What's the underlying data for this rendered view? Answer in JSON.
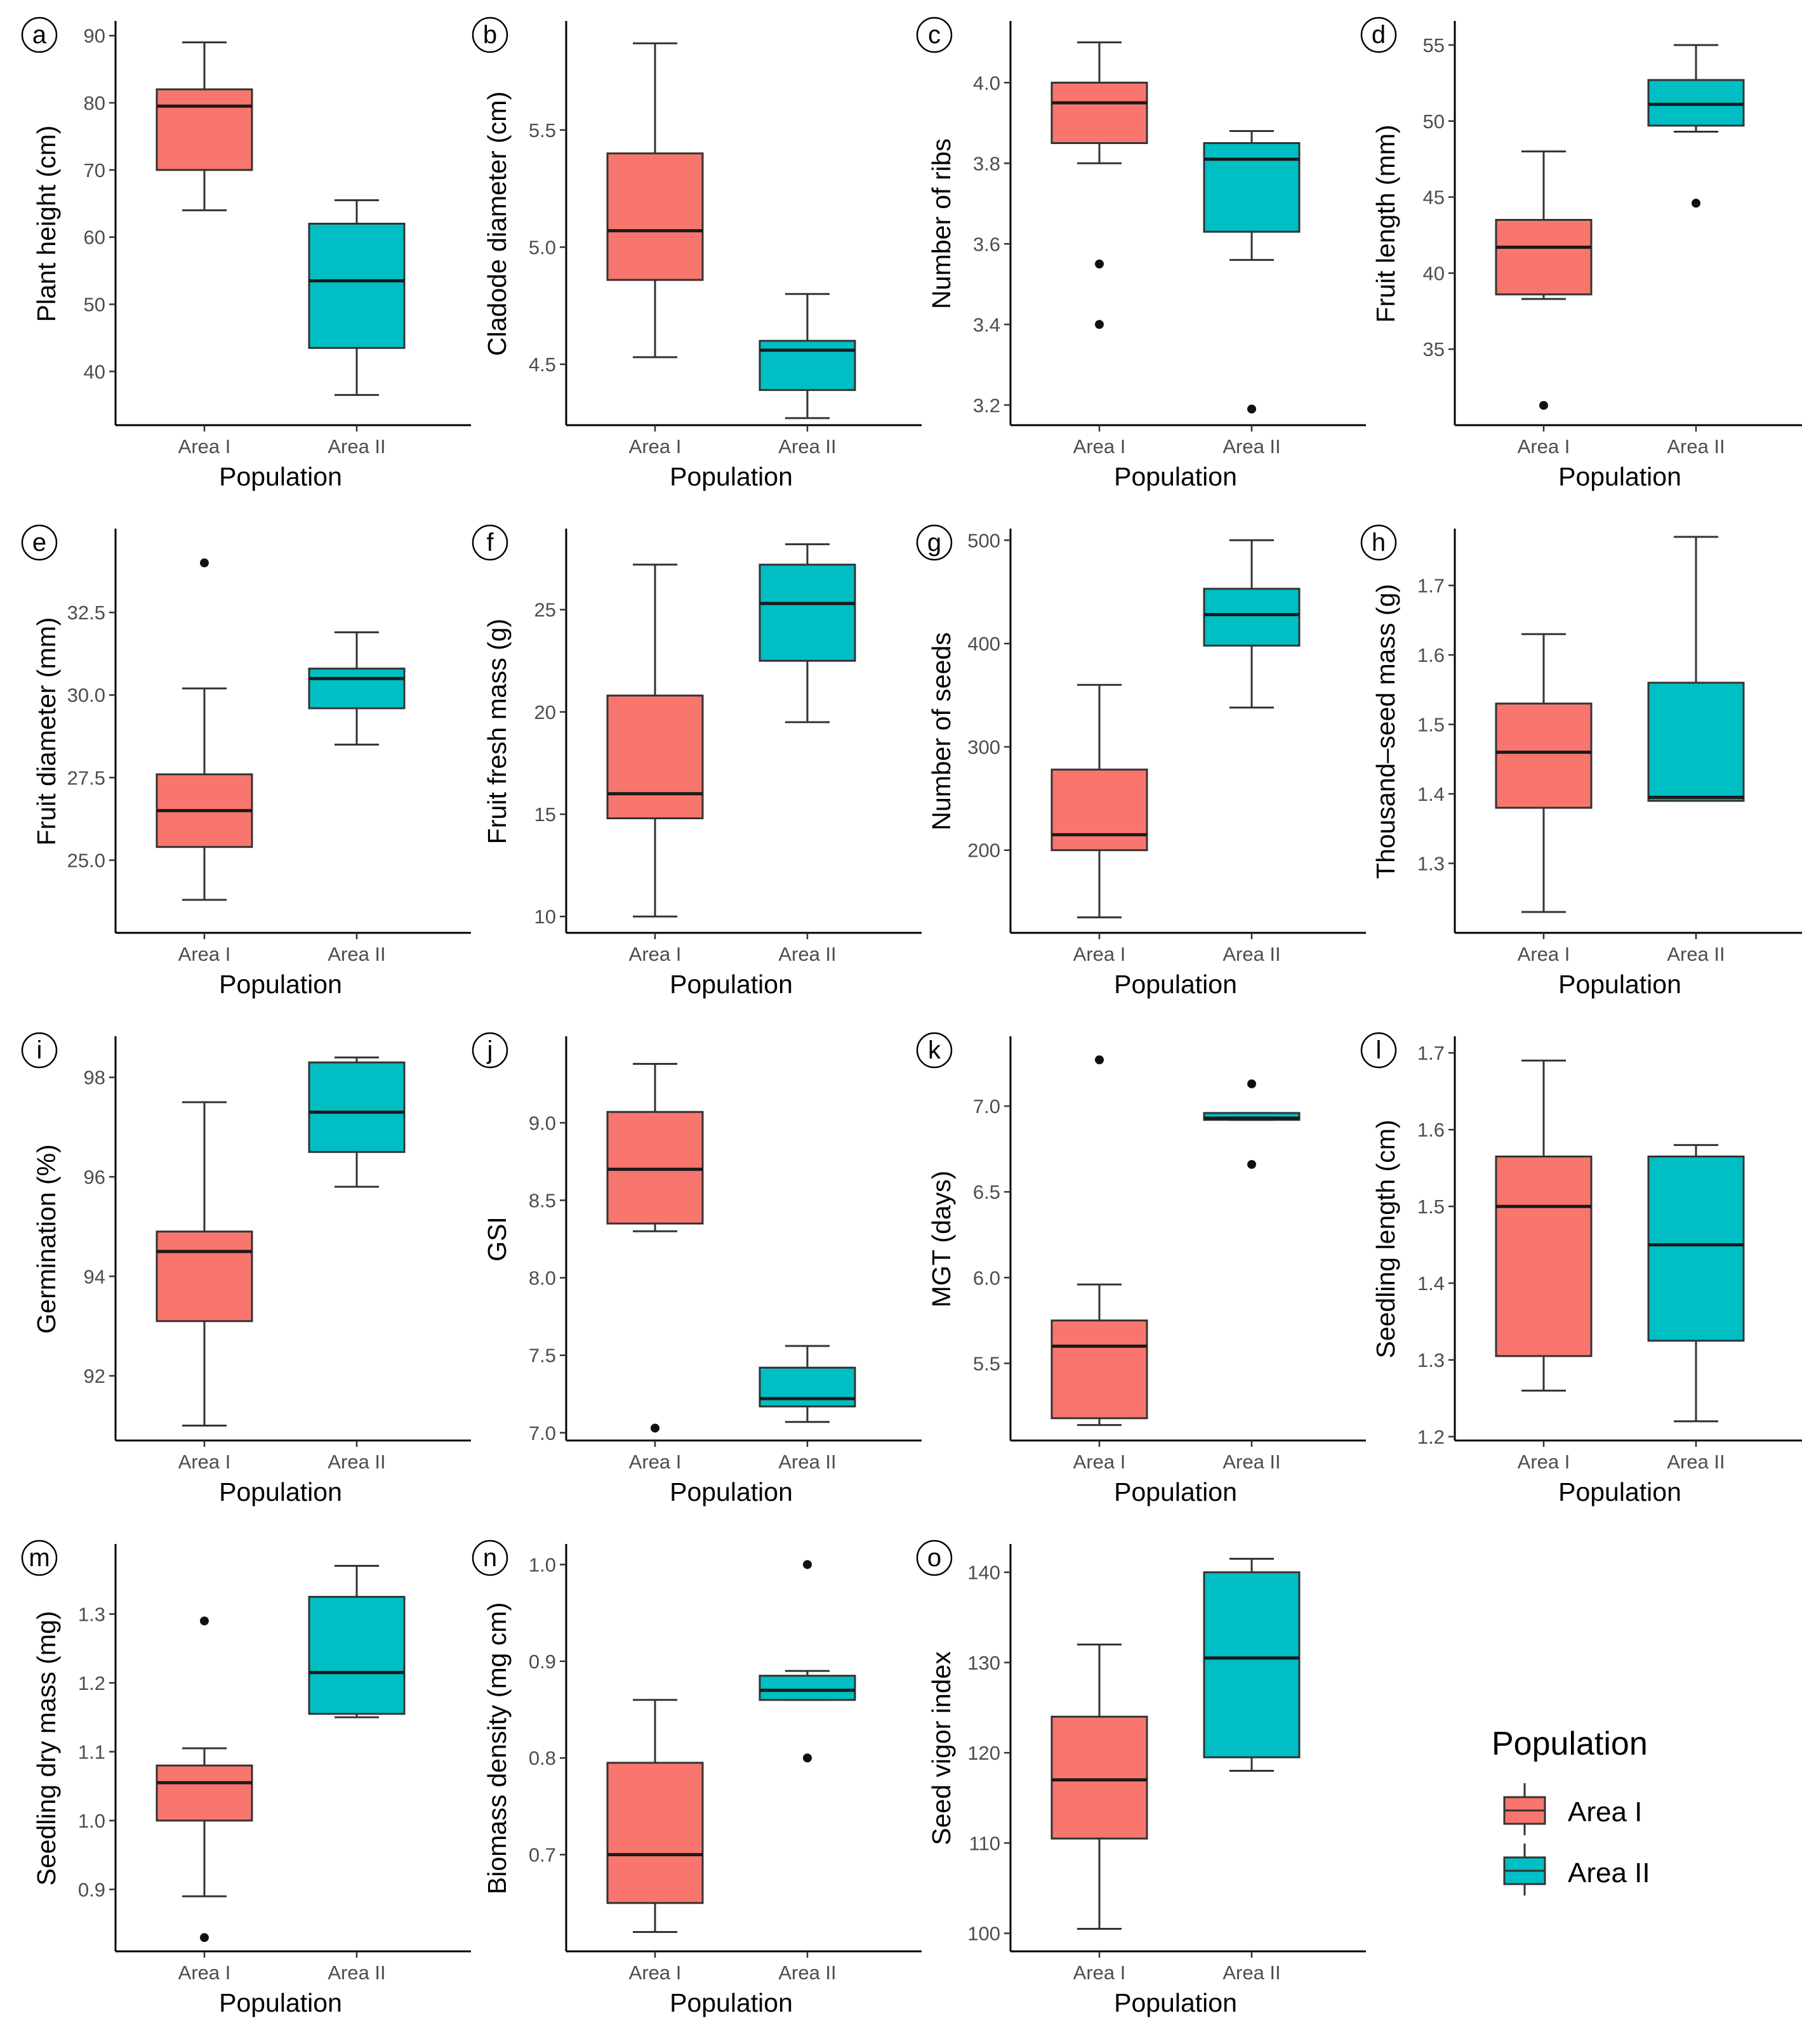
{
  "colors": {
    "area_i": "#F8766D",
    "area_ii": "#00BFC4"
  },
  "legend": {
    "title": "Population",
    "items": [
      {
        "label": "Area I",
        "color": "#F8766D"
      },
      {
        "label": "Area II",
        "color": "#00BFC4"
      }
    ]
  },
  "chart_data": [
    {
      "type": "boxplot",
      "panel": "a",
      "ylabel": "Plant height (cm)",
      "xlabel": "Population",
      "categories": [
        "Area I",
        "Area II"
      ],
      "ylim": [
        32,
        92
      ],
      "ticks": [
        40,
        50,
        60,
        70,
        80,
        90
      ],
      "boxes": [
        {
          "min": 64,
          "q1": 70,
          "median": 79.5,
          "q3": 82,
          "max": 89,
          "outliers": []
        },
        {
          "min": 36.5,
          "q1": 43.5,
          "median": 53.5,
          "q3": 62,
          "max": 65.5,
          "outliers": []
        }
      ]
    },
    {
      "type": "boxplot",
      "panel": "b",
      "ylabel": "Cladode diameter (cm)",
      "xlabel": "Population",
      "categories": [
        "Area I",
        "Area II"
      ],
      "ylim": [
        4.24,
        5.96
      ],
      "ticks": [
        "4.5",
        "5.0",
        "5.5"
      ],
      "boxes": [
        {
          "min": 4.53,
          "q1": 4.86,
          "median": 5.07,
          "q3": 5.4,
          "max": 5.87,
          "outliers": []
        },
        {
          "min": 4.27,
          "q1": 4.39,
          "median": 4.56,
          "q3": 4.6,
          "max": 4.8,
          "outliers": []
        }
      ]
    },
    {
      "type": "boxplot",
      "panel": "c",
      "ylabel": "Number of ribs",
      "xlabel": "Population",
      "categories": [
        "Area I",
        "Area II"
      ],
      "ylim": [
        3.15,
        4.15
      ],
      "ticks": [
        "3.2",
        "3.4",
        "3.6",
        "3.8",
        "4.0"
      ],
      "boxes": [
        {
          "min": 3.8,
          "q1": 3.85,
          "median": 3.95,
          "q3": 4.0,
          "max": 4.1,
          "outliers": [
            3.55,
            3.4
          ]
        },
        {
          "min": 3.56,
          "q1": 3.63,
          "median": 3.81,
          "q3": 3.85,
          "max": 3.88,
          "outliers": [
            3.19
          ]
        }
      ]
    },
    {
      "type": "boxplot",
      "panel": "d",
      "ylabel": "Fruit length (mm)",
      "xlabel": "Population",
      "categories": [
        "Area I",
        "Area II"
      ],
      "ylim": [
        30,
        56.5
      ],
      "ticks": [
        35,
        40,
        45,
        50,
        55
      ],
      "boxes": [
        {
          "min": 38.3,
          "q1": 38.6,
          "median": 41.7,
          "q3": 43.5,
          "max": 48,
          "outliers": [
            31.3
          ]
        },
        {
          "min": 49.3,
          "q1": 49.7,
          "median": 51.1,
          "q3": 52.7,
          "max": 55,
          "outliers": [
            44.6
          ]
        }
      ]
    },
    {
      "type": "boxplot",
      "panel": "e",
      "ylabel": "Fruit diameter (mm)",
      "xlabel": "Population",
      "categories": [
        "Area I",
        "Area II"
      ],
      "ylim": [
        22.8,
        35.0
      ],
      "ticks": [
        "25.0",
        "27.5",
        "30.0",
        "32.5"
      ],
      "boxes": [
        {
          "min": 23.8,
          "q1": 25.4,
          "median": 26.5,
          "q3": 27.6,
          "max": 30.2,
          "outliers": [
            34
          ]
        },
        {
          "min": 28.5,
          "q1": 29.6,
          "median": 30.5,
          "q3": 30.8,
          "max": 31.9,
          "outliers": []
        }
      ]
    },
    {
      "type": "boxplot",
      "panel": "f",
      "ylabel": "Fruit fresh mass (g)",
      "xlabel": "Population",
      "categories": [
        "Area I",
        "Area II"
      ],
      "ylim": [
        9.2,
        28.9
      ],
      "ticks": [
        10,
        15,
        20,
        25
      ],
      "boxes": [
        {
          "min": 10,
          "q1": 14.8,
          "median": 16,
          "q3": 20.8,
          "max": 27.2,
          "outliers": []
        },
        {
          "min": 19.5,
          "q1": 22.5,
          "median": 25.3,
          "q3": 27.2,
          "max": 28.2,
          "outliers": []
        }
      ]
    },
    {
      "type": "boxplot",
      "panel": "g",
      "ylabel": "Number of seeds",
      "xlabel": "Population",
      "categories": [
        "Area I",
        "Area II"
      ],
      "ylim": [
        120,
        510
      ],
      "ticks": [
        200,
        300,
        400,
        500
      ],
      "boxes": [
        {
          "min": 135,
          "q1": 200,
          "median": 215,
          "q3": 278,
          "max": 360,
          "outliers": []
        },
        {
          "min": 338,
          "q1": 398,
          "median": 428,
          "q3": 453,
          "max": 500,
          "outliers": []
        }
      ]
    },
    {
      "type": "boxplot",
      "panel": "h",
      "ylabel": "Thousand–seed mass (g)",
      "xlabel": "Population",
      "categories": [
        "Area I",
        "Area II"
      ],
      "ylim": [
        1.2,
        1.78
      ],
      "ticks": [
        "1.3",
        "1.4",
        "1.5",
        "1.6",
        "1.7"
      ],
      "boxes": [
        {
          "min": 1.23,
          "q1": 1.38,
          "median": 1.46,
          "q3": 1.53,
          "max": 1.63,
          "outliers": []
        },
        {
          "min": 1.39,
          "q1": 1.39,
          "median": 1.395,
          "q3": 1.56,
          "max": 1.77,
          "outliers": []
        }
      ]
    },
    {
      "type": "boxplot",
      "panel": "i",
      "ylabel": "Germination (%)",
      "xlabel": "Population",
      "categories": [
        "Area I",
        "Area II"
      ],
      "ylim": [
        90.7,
        98.8
      ],
      "ticks": [
        92,
        94,
        96,
        98
      ],
      "boxes": [
        {
          "min": 91,
          "q1": 93.1,
          "median": 94.5,
          "q3": 94.9,
          "max": 97.5,
          "outliers": []
        },
        {
          "min": 95.8,
          "q1": 96.5,
          "median": 97.3,
          "q3": 98.3,
          "max": 98.4,
          "outliers": []
        }
      ]
    },
    {
      "type": "boxplot",
      "panel": "j",
      "ylabel": "GSI",
      "xlabel": "Population",
      "categories": [
        "Area I",
        "Area II"
      ],
      "ylim": [
        6.95,
        9.55
      ],
      "ticks": [
        "7.0",
        "7.5",
        "8.0",
        "8.5",
        "9.0"
      ],
      "boxes": [
        {
          "min": 8.3,
          "q1": 8.35,
          "median": 8.7,
          "q3": 9.07,
          "max": 9.38,
          "outliers": [
            7.03
          ]
        },
        {
          "min": 7.07,
          "q1": 7.17,
          "median": 7.22,
          "q3": 7.42,
          "max": 7.56,
          "outliers": []
        }
      ]
    },
    {
      "type": "boxplot",
      "panel": "k",
      "ylabel": "MGT (days)",
      "xlabel": "Population",
      "categories": [
        "Area I",
        "Area II"
      ],
      "ylim": [
        5.05,
        7.4
      ],
      "ticks": [
        "5.5",
        "6.0",
        "6.5",
        "7.0"
      ],
      "boxes": [
        {
          "min": 5.14,
          "q1": 5.18,
          "median": 5.6,
          "q3": 5.75,
          "max": 5.96,
          "outliers": [
            7.27
          ]
        },
        {
          "min": 6.92,
          "q1": 6.92,
          "median": 6.93,
          "q3": 6.96,
          "max": 6.96,
          "outliers": [
            7.13,
            6.66
          ]
        }
      ]
    },
    {
      "type": "boxplot",
      "panel": "l",
      "ylabel": "Seedling length (cm)",
      "xlabel": "Population",
      "categories": [
        "Area I",
        "Area II"
      ],
      "ylim": [
        1.195,
        1.72
      ],
      "ticks": [
        "1.2",
        "1.3",
        "1.4",
        "1.5",
        "1.6",
        "1.7"
      ],
      "boxes": [
        {
          "min": 1.26,
          "q1": 1.305,
          "median": 1.5,
          "q3": 1.565,
          "max": 1.69,
          "outliers": []
        },
        {
          "min": 1.22,
          "q1": 1.325,
          "median": 1.45,
          "q3": 1.565,
          "max": 1.58,
          "outliers": []
        }
      ]
    },
    {
      "type": "boxplot",
      "panel": "m",
      "ylabel": "Seedling dry mass (mg)",
      "xlabel": "Population",
      "categories": [
        "Area I",
        "Area II"
      ],
      "ylim": [
        0.81,
        1.4
      ],
      "ticks": [
        "0.9",
        "1.0",
        "1.1",
        "1.2",
        "1.3"
      ],
      "boxes": [
        {
          "min": 0.89,
          "q1": 1.0,
          "median": 1.055,
          "q3": 1.08,
          "max": 1.105,
          "outliers": [
            1.29,
            0.83
          ]
        },
        {
          "min": 1.15,
          "q1": 1.155,
          "median": 1.215,
          "q3": 1.325,
          "max": 1.37,
          "outliers": []
        }
      ]
    },
    {
      "type": "boxplot",
      "panel": "n",
      "ylabel": "Biomass density (mg cm)",
      "xlabel": "Population",
      "categories": [
        "Area I",
        "Area II"
      ],
      "ylim": [
        0.6,
        1.02
      ],
      "ticks": [
        "0.7",
        "0.8",
        "0.9",
        "1.0"
      ],
      "boxes": [
        {
          "min": 0.62,
          "q1": 0.65,
          "median": 0.7,
          "q3": 0.795,
          "max": 0.86,
          "outliers": []
        },
        {
          "min": 0.86,
          "q1": 0.86,
          "median": 0.87,
          "q3": 0.885,
          "max": 0.89,
          "outliers": [
            1.0,
            0.8
          ]
        }
      ]
    },
    {
      "type": "boxplot",
      "panel": "o",
      "ylabel": "Seed vigor index",
      "xlabel": "Population",
      "categories": [
        "Area I",
        "Area II"
      ],
      "ylim": [
        98,
        143
      ],
      "ticks": [
        100,
        110,
        120,
        130,
        140
      ],
      "boxes": [
        {
          "min": 100.5,
          "q1": 110.5,
          "median": 117,
          "q3": 124,
          "max": 132,
          "outliers": []
        },
        {
          "min": 118,
          "q1": 119.5,
          "median": 130.5,
          "q3": 140,
          "max": 141.5,
          "outliers": []
        }
      ]
    }
  ]
}
